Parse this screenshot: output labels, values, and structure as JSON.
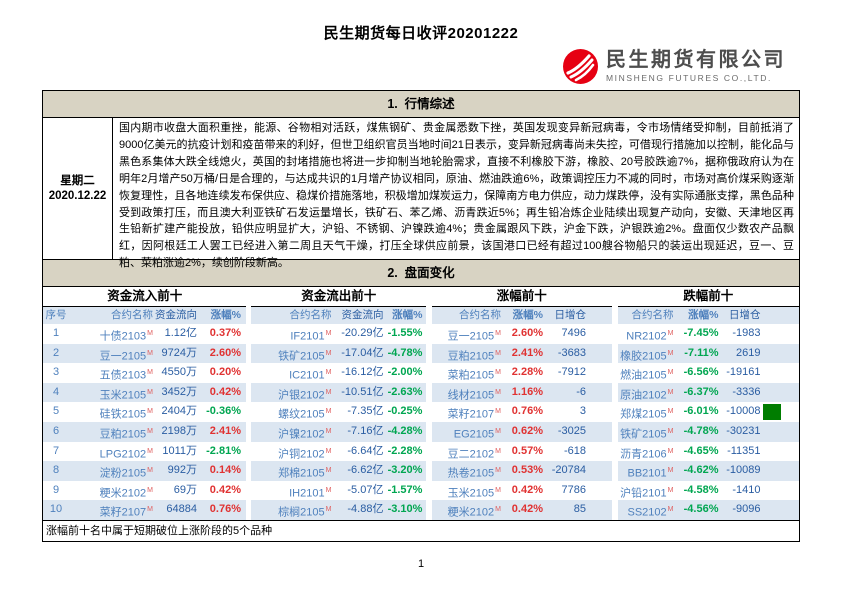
{
  "page": {
    "title": "民生期货每日收评20201222",
    "page_number": "1"
  },
  "logo": {
    "company_cn": "民生期货有限公司",
    "company_en": "MINSHENG FUTURES CO.,LTD.",
    "brand_color": "#e60012"
  },
  "section1": {
    "heading": "1.  行情综述",
    "date_weekday": "星期二",
    "date": "2020.12.22",
    "summary": "国内期市收盘大面积重挫，能源、谷物相对活跃，煤焦钢矿、贵金属悉数下挫，英国发现变异新冠病毒，令市场情绪受抑制，目前抵消了9000亿美元的抗疫计划和疫苗带来的利好，但世卫组织官员当地时间21日表示，变异新冠病毒尚未失控，可借现行措施加以控制，能化品与黑色系集体大跌全线熄火，英国的封堵措施也将进一步抑制当地轮胎需求，直接不利橡胶下游，橡胶、20号胶跌逾7%，据称俄政府认为在明年2月增产50万桶/日是合理的，与达成共识的1月增产协议相同，原油、燃油跌逾6%，政策调控压力不减的同时，市场对高价煤采购逐渐恢复理性，且各地连续发布保供应、稳煤价措施落地，积极增加煤炭运力，保障南方电力供应，动力煤跌停，没有实际通胀支撑，黑色品种受到政策打压，而且澳大利亚铁矿石发运量增长，铁矿石、苯乙烯、沥青跌近5%；再生铅冶炼企业陆续出现复产动向，安徽、天津地区再生铅新扩建产能投放，铅供应明显扩大，沪铅、不锈钢、沪镍跌逾4%；贵金属跟风下跌，沪金下跌，沪银跌逾2%。盘面仅少数农产品飘红，因阿根廷工人罢工已经进入第二周且天气干燥，打压全球供应前景，该国港口已经有超过100艘谷物船只的装运出现延迟，豆一、豆粕、菜粕涨逾2%，续创阶段新高。"
  },
  "section2": {
    "heading": "2.  盘面变化"
  },
  "contract_flag": "M",
  "tables": [
    {
      "title": "资金流入前十",
      "columns": [
        {
          "label": "序号",
          "type": "seq"
        },
        {
          "label": "合约名称",
          "type": "name"
        },
        {
          "label": "资金流向",
          "type": "value"
        },
        {
          "label": "涨幅%",
          "type": "pct"
        }
      ],
      "rows": [
        [
          "1",
          "十债2103",
          "1.12亿",
          "0.37%"
        ],
        [
          "2",
          "豆一2105",
          "9724万",
          "2.60%"
        ],
        [
          "3",
          "五债2103",
          "4550万",
          "0.20%"
        ],
        [
          "4",
          "玉米2105",
          "3452万",
          "0.42%"
        ],
        [
          "5",
          "硅铁2105",
          "2404万",
          "-0.36%"
        ],
        [
          "6",
          "豆粕2105",
          "2198万",
          "2.41%"
        ],
        [
          "7",
          "LPG2102",
          "1011万",
          "-2.81%"
        ],
        [
          "8",
          "淀粉2105",
          "992万",
          "0.14%"
        ],
        [
          "9",
          "粳米2102",
          "69万",
          "0.42%"
        ],
        [
          "10",
          "菜籽2107",
          "64884",
          "0.76%"
        ]
      ]
    },
    {
      "title": "资金流出前十",
      "columns": [
        {
          "label": "合约名称",
          "type": "name"
        },
        {
          "label": "资金流向",
          "type": "value"
        },
        {
          "label": "涨幅%",
          "type": "pct"
        }
      ],
      "rows": [
        [
          "IF2101",
          "-20.29亿",
          "-1.55%"
        ],
        [
          "铁矿2105",
          "-17.04亿",
          "-4.78%"
        ],
        [
          "IC2101",
          "-16.12亿",
          "-2.00%"
        ],
        [
          "沪银2102",
          "-10.51亿",
          "-2.63%"
        ],
        [
          "螺纹2105",
          "-7.35亿",
          "-0.25%"
        ],
        [
          "沪镍2102",
          "-7.16亿",
          "-4.28%"
        ],
        [
          "沪铜2102",
          "-6.64亿",
          "-2.28%"
        ],
        [
          "郑棉2105",
          "-6.62亿",
          "-3.20%"
        ],
        [
          "IH2101",
          "-5.07亿",
          "-1.57%"
        ],
        [
          "棕榈2105",
          "-4.88亿",
          "-3.10%"
        ]
      ]
    },
    {
      "title": "涨幅前十",
      "columns": [
        {
          "label": "合约名称",
          "type": "name"
        },
        {
          "label": "涨幅%",
          "type": "pct"
        },
        {
          "label": "日增仓",
          "type": "incr"
        }
      ],
      "rows": [
        [
          "豆一2105",
          "2.60%",
          "7496"
        ],
        [
          "豆粕2105",
          "2.41%",
          "-3683"
        ],
        [
          "菜粕2105",
          "2.28%",
          "-7912"
        ],
        [
          "线材2105",
          "1.16%",
          "-6"
        ],
        [
          "菜籽2107",
          "0.76%",
          "3"
        ],
        [
          "EG2105",
          "0.62%",
          "-3025"
        ],
        [
          "豆二2102",
          "0.57%",
          "-618"
        ],
        [
          "热卷2105",
          "0.53%",
          "-20784"
        ],
        [
          "玉米2105",
          "0.42%",
          "7786"
        ],
        [
          "粳米2102",
          "0.42%",
          "85"
        ]
      ]
    },
    {
      "title": "跌幅前十",
      "columns": [
        {
          "label": "合约名称",
          "type": "name"
        },
        {
          "label": "涨幅%",
          "type": "pct"
        },
        {
          "label": "日增仓",
          "type": "incr"
        }
      ],
      "marker_row": 4,
      "rows": [
        [
          "NR2102",
          "-7.45%",
          "-1983"
        ],
        [
          "橡胶2105",
          "-7.11%",
          "2619"
        ],
        [
          "燃油2105",
          "-6.56%",
          "-19161"
        ],
        [
          "原油2102",
          "-6.37%",
          "-3336"
        ],
        [
          "郑煤2105",
          "-6.01%",
          "-10008"
        ],
        [
          "铁矿2105",
          "-4.78%",
          "-30231"
        ],
        [
          "沥青2106",
          "-4.65%",
          "-11351"
        ],
        [
          "BB2101",
          "-4.62%",
          "-10089"
        ],
        [
          "沪铅2101",
          "-4.58%",
          "-1410"
        ],
        [
          "SS2102",
          "-4.56%",
          "-9096"
        ]
      ]
    }
  ],
  "footer_note": "涨幅前十名中属于短期破位上涨阶段的5个品种",
  "colors": {
    "up_red": "#e03232",
    "down_green": "#00a651",
    "accent_blue": "#4f81bd",
    "value_navy": "#2a5da2",
    "section_header_beige": "#d8d3c3",
    "row_alt_blue": "#dce6f1",
    "brand_red": "#e60012",
    "marker_green": "#007d00"
  }
}
